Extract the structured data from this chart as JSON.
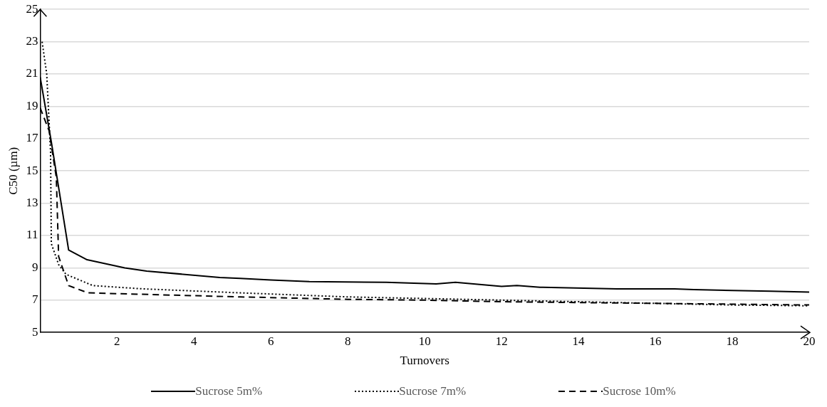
{
  "chart_data": {
    "type": "line",
    "xlabel": "Turnovers",
    "ylabel": "C50 (µm)",
    "xlim": [
      0,
      20
    ],
    "xticks": [
      2,
      4,
      6,
      8,
      10,
      12,
      14,
      16,
      18,
      20
    ],
    "ylim": [
      5,
      25
    ],
    "yticks": [
      5,
      7,
      9,
      11,
      13,
      15,
      17,
      19,
      21,
      23,
      25
    ],
    "grid": "y",
    "legend": "bottom",
    "marker": "none",
    "series": [
      {
        "name": "Sucrose 5m%",
        "color": "#000000",
        "line_style": "solid",
        "x": [
          0,
          0.29,
          0.74,
          1.22,
          2.2,
          2.77,
          4.67,
          5.2,
          6,
          7,
          9,
          10.3,
          10.8,
          12,
          12.4,
          13,
          15,
          16.5,
          17,
          18,
          19,
          20
        ],
        "values": [
          20.8,
          16.8,
          10.1,
          9.5,
          9.0,
          8.8,
          8.4,
          8.35,
          8.25,
          8.15,
          8.1,
          8.0,
          8.1,
          7.85,
          7.9,
          7.8,
          7.7,
          7.7,
          7.65,
          7.6,
          7.55,
          7.5
        ]
      },
      {
        "name": "Sucrose 7m%",
        "color": "#000000",
        "line_style": "dotted",
        "x": [
          0.05,
          0.17,
          0.27,
          0.29,
          0.48,
          0.67,
          1.37,
          2.65,
          5.2,
          8,
          10,
          12,
          14,
          16,
          18,
          20
        ],
        "values": [
          23,
          21,
          16.2,
          10.5,
          9.2,
          8.6,
          7.9,
          7.7,
          7.45,
          7.2,
          7.1,
          7.0,
          6.9,
          6.8,
          6.7,
          6.65
        ]
      },
      {
        "name": "Sucrose 10m%",
        "color": "#000000",
        "line_style": "dashed",
        "x": [
          0,
          0.23,
          0.42,
          0.48,
          0.74,
          1.24,
          5.2,
          8,
          10,
          12,
          14,
          16,
          18,
          20
        ],
        "values": [
          18.9,
          17.5,
          14.6,
          9.7,
          7.9,
          7.45,
          7.2,
          7.05,
          7.0,
          6.9,
          6.85,
          6.8,
          6.75,
          6.7
        ]
      }
    ]
  }
}
